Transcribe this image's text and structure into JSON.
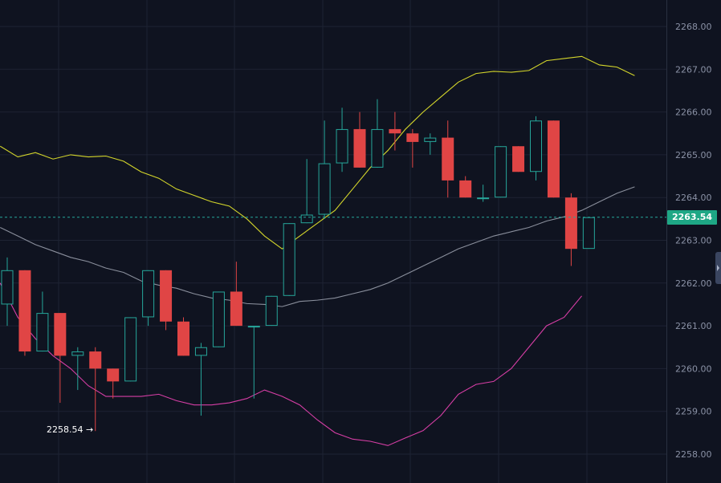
{
  "chart_data": {
    "type": "candlestick",
    "ylim": [
      2257.6,
      2268.6
    ],
    "y_ticks": [
      "2258.00",
      "2259.00",
      "2260.00",
      "2261.00",
      "2262.00",
      "2263.00",
      "2264.00",
      "2265.00",
      "2266.00",
      "2267.00",
      "2268.00"
    ],
    "grid": true,
    "current_price": "2263.54",
    "low_annotation": "2258.54",
    "colors": {
      "up": "#26a69a",
      "down": "#e04545",
      "upper_band": "#d4d62b",
      "middle_band": "#8a8f9c",
      "lower_band": "#d63ea5",
      "grid": "#1e2333",
      "background": "#0f1320",
      "current_line": "#26a69a"
    },
    "candles": [
      {
        "o": 2261.5,
        "h": 2262.6,
        "l": 2261.0,
        "c": 2262.3
      },
      {
        "o": 2262.3,
        "h": 2262.3,
        "l": 2260.3,
        "c": 2260.4
      },
      {
        "o": 2260.4,
        "h": 2261.8,
        "l": 2260.4,
        "c": 2261.3
      },
      {
        "o": 2261.3,
        "h": 2261.3,
        "l": 2259.2,
        "c": 2260.3
      },
      {
        "o": 2260.3,
        "h": 2260.5,
        "l": 2259.5,
        "c": 2260.4
      },
      {
        "o": 2260.4,
        "h": 2260.5,
        "l": 2258.54,
        "c": 2260.0
      },
      {
        "o": 2260.0,
        "h": 2260.0,
        "l": 2259.3,
        "c": 2259.7
      },
      {
        "o": 2259.7,
        "h": 2261.2,
        "l": 2259.7,
        "c": 2261.2
      },
      {
        "o": 2261.2,
        "h": 2262.3,
        "l": 2261.0,
        "c": 2262.3
      },
      {
        "o": 2262.3,
        "h": 2262.3,
        "l": 2260.9,
        "c": 2261.1
      },
      {
        "o": 2261.1,
        "h": 2261.2,
        "l": 2260.3,
        "c": 2260.3
      },
      {
        "o": 2260.3,
        "h": 2260.6,
        "l": 2258.9,
        "c": 2260.5
      },
      {
        "o": 2260.5,
        "h": 2261.8,
        "l": 2260.5,
        "c": 2261.8
      },
      {
        "o": 2261.8,
        "h": 2262.5,
        "l": 2261.0,
        "c": 2261.0
      },
      {
        "o": 2261.0,
        "h": 2261.0,
        "l": 2259.3,
        "c": 2261.0
      },
      {
        "o": 2261.0,
        "h": 2261.7,
        "l": 2261.0,
        "c": 2261.7
      },
      {
        "o": 2261.7,
        "h": 2263.4,
        "l": 2261.7,
        "c": 2263.4
      },
      {
        "o": 2263.4,
        "h": 2264.9,
        "l": 2263.4,
        "c": 2263.6
      },
      {
        "o": 2263.6,
        "h": 2265.8,
        "l": 2263.5,
        "c": 2264.8
      },
      {
        "o": 2264.8,
        "h": 2266.1,
        "l": 2264.6,
        "c": 2265.6
      },
      {
        "o": 2265.6,
        "h": 2266.0,
        "l": 2264.7,
        "c": 2264.7
      },
      {
        "o": 2264.7,
        "h": 2266.3,
        "l": 2264.7,
        "c": 2265.6
      },
      {
        "o": 2265.6,
        "h": 2266.0,
        "l": 2265.1,
        "c": 2265.5
      },
      {
        "o": 2265.5,
        "h": 2265.6,
        "l": 2264.7,
        "c": 2265.3
      },
      {
        "o": 2265.3,
        "h": 2265.5,
        "l": 2265.0,
        "c": 2265.4
      },
      {
        "o": 2265.4,
        "h": 2265.8,
        "l": 2264.0,
        "c": 2264.4
      },
      {
        "o": 2264.4,
        "h": 2264.5,
        "l": 2264.0,
        "c": 2264.0
      },
      {
        "o": 2264.0,
        "h": 2264.3,
        "l": 2263.9,
        "c": 2264.0
      },
      {
        "o": 2264.0,
        "h": 2265.2,
        "l": 2264.0,
        "c": 2265.2
      },
      {
        "o": 2265.2,
        "h": 2265.2,
        "l": 2264.6,
        "c": 2264.6
      },
      {
        "o": 2264.6,
        "h": 2265.9,
        "l": 2264.4,
        "c": 2265.8
      },
      {
        "o": 2265.8,
        "h": 2265.8,
        "l": 2264.0,
        "c": 2264.0
      },
      {
        "o": 2264.0,
        "h": 2264.1,
        "l": 2262.4,
        "c": 2262.8
      },
      {
        "o": 2262.8,
        "h": 2263.5,
        "l": 2262.8,
        "c": 2263.54
      }
    ],
    "series": [
      {
        "values": [
          2265.2,
          2264.95,
          2265.05,
          2264.9,
          2265.0,
          2264.95,
          2264.97,
          2264.85,
          2264.6,
          2264.45,
          2264.2,
          2264.05,
          2263.9,
          2263.8,
          2263.5,
          2263.1,
          2262.8,
          2263.1,
          2263.4,
          2263.7,
          2264.2,
          2264.7,
          2265.1,
          2265.6,
          2266.0,
          2266.35,
          2266.7,
          2266.9,
          2266.95,
          2266.93,
          2266.97,
          2267.2,
          2267.25,
          2267.3,
          2267.1,
          2267.05,
          2266.85
        ]
      },
      {
        "values": [
          2263.3,
          2263.1,
          2262.9,
          2262.75,
          2262.6,
          2262.5,
          2262.35,
          2262.25,
          2262.05,
          2261.95,
          2261.88,
          2261.75,
          2261.65,
          2261.6,
          2261.52,
          2261.5,
          2261.45,
          2261.57,
          2261.6,
          2261.65,
          2261.75,
          2261.85,
          2262.0,
          2262.2,
          2262.4,
          2262.6,
          2262.8,
          2262.95,
          2263.1,
          2263.2,
          2263.3,
          2263.45,
          2263.55,
          2263.7,
          2263.9,
          2264.1,
          2264.25
        ]
      },
      {
        "values": [
          2262.0,
          2261.2,
          2260.7,
          2260.3,
          2260.0,
          2259.6,
          2259.35,
          2259.35,
          2259.35,
          2259.4,
          2259.25,
          2259.15,
          2259.15,
          2259.2,
          2259.3,
          2259.5,
          2259.35,
          2259.15,
          2258.8,
          2258.5,
          2258.35,
          2258.3,
          2258.2,
          2258.38,
          2258.55,
          2258.9,
          2259.4,
          2259.63,
          2259.7,
          2260.0,
          2260.5,
          2261.0,
          2261.2,
          2261.7
        ]
      }
    ]
  }
}
